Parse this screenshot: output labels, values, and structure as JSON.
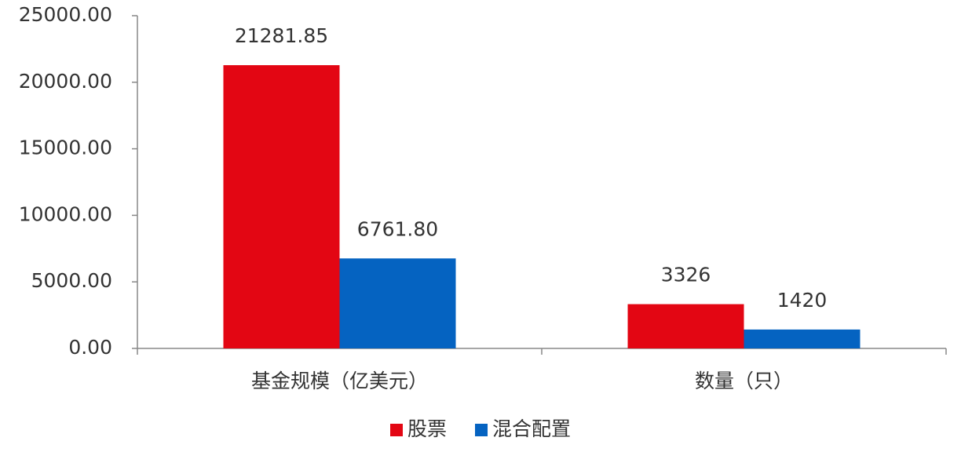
{
  "chart_data": {
    "type": "bar",
    "categories": [
      "基金规模（亿美元）",
      "数量（只）"
    ],
    "series": [
      {
        "name": "股票",
        "color": "#e30613",
        "values": [
          21281.85,
          3326
        ],
        "value_labels": [
          "21281.85",
          "3326"
        ]
      },
      {
        "name": "混合配置",
        "color": "#0563c1",
        "values": [
          6761.8,
          1420
        ],
        "value_labels": [
          "6761.80",
          "1420"
        ]
      }
    ],
    "ylim": [
      0,
      25000
    ],
    "yticks": [
      {
        "value": 0,
        "label": "0.00"
      },
      {
        "value": 5000,
        "label": "5000.00"
      },
      {
        "value": 10000,
        "label": "10000.00"
      },
      {
        "value": 15000,
        "label": "15000.00"
      },
      {
        "value": 20000,
        "label": "20000.00"
      },
      {
        "value": 25000,
        "label": "25000.00"
      }
    ],
    "grid": false,
    "legend": "bottom"
  }
}
